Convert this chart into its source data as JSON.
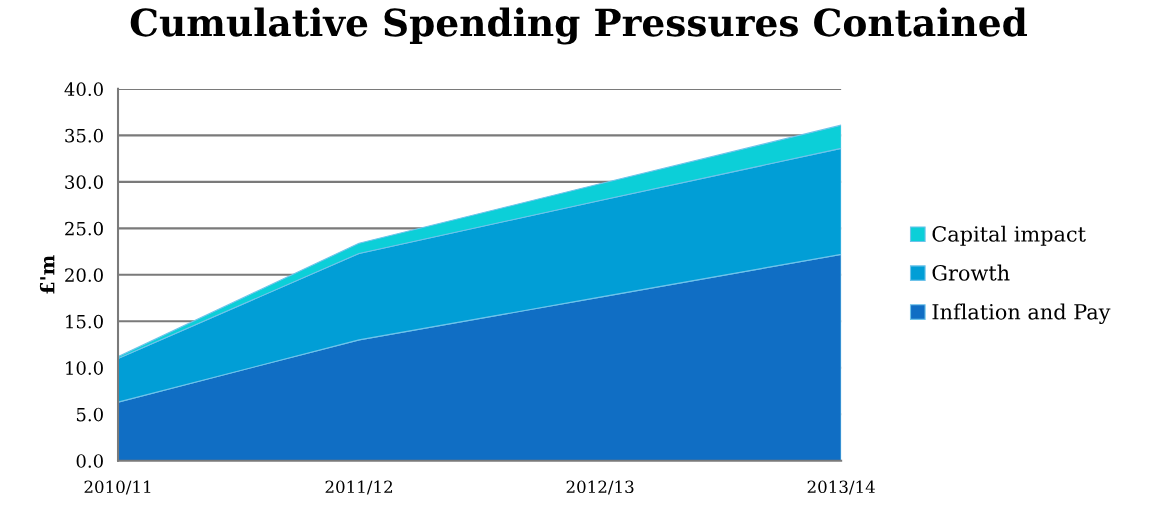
{
  "chart_data": {
    "type": "area",
    "stacked": true,
    "title": "Cumulative Spending Pressures Contained",
    "ylabel": "£'m",
    "categories": [
      "2010/11",
      "2011/12",
      "2012/13",
      "2013/14"
    ],
    "series": [
      {
        "name": "Inflation and Pay",
        "color": "#106ec4",
        "values": [
          6.3,
          13.0,
          17.6,
          22.2
        ]
      },
      {
        "name": "Growth",
        "color": "#019ed6",
        "values": [
          4.7,
          9.3,
          10.4,
          11.4
        ]
      },
      {
        "name": "Capital impact",
        "color": "#0ccfd8",
        "values": [
          0.2,
          1.1,
          1.8,
          2.5
        ]
      }
    ],
    "ylim": [
      0,
      40
    ],
    "yticks": [
      {
        "value": 0,
        "label": "0.0"
      },
      {
        "value": 5,
        "label": "5.0"
      },
      {
        "value": 10,
        "label": "10.0"
      },
      {
        "value": 15,
        "label": "15.0"
      },
      {
        "value": 20,
        "label": "20.0"
      },
      {
        "value": 25,
        "label": "25.0"
      },
      {
        "value": 30,
        "label": "30.0"
      },
      {
        "value": 35,
        "label": "35.0"
      },
      {
        "value": 40,
        "label": "40.0"
      }
    ],
    "grid": "y",
    "legend": "right"
  }
}
